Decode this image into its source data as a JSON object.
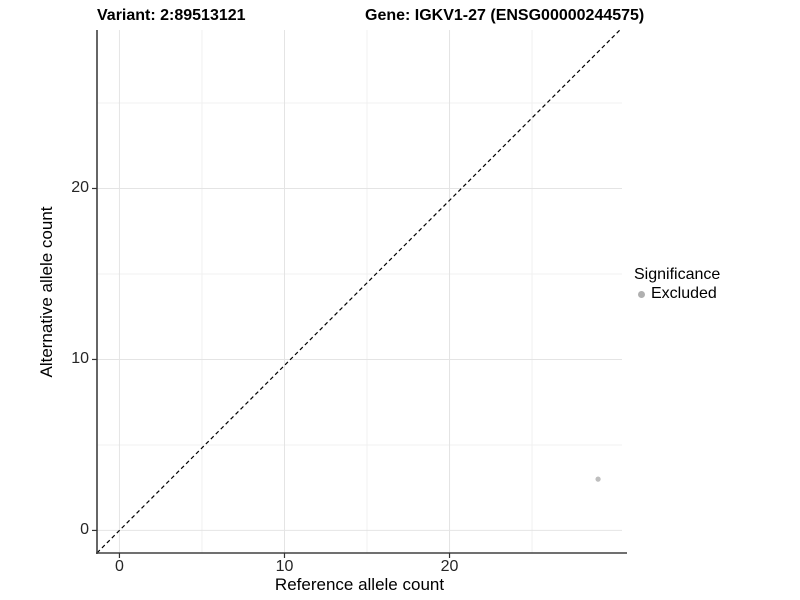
{
  "header": {
    "variant_title": "Variant: 2:89513121",
    "gene_title": "Gene: IGKV1-27 (ENSG00000244575)"
  },
  "chart_data": {
    "type": "scatter",
    "titles": [
      "Variant: 2:89513121",
      "Gene: IGKV1-27 (ENSG00000244575)"
    ],
    "xlabel": "Reference allele count",
    "ylabel": "Alternative allele count",
    "xlim": [
      -1.36,
      30.45
    ],
    "ylim": [
      -1.32,
      29.27
    ],
    "x_ticks": [
      0,
      10,
      20
    ],
    "x_tick_labels": [
      "0",
      "10",
      "20"
    ],
    "y_ticks": [
      0,
      10,
      20
    ],
    "y_tick_labels": [
      "0",
      "10",
      "20"
    ],
    "x_minor_ticks": [
      5,
      15,
      25
    ],
    "y_minor_ticks": [
      5,
      15,
      25
    ],
    "grid": true,
    "points": [
      {
        "x": 29,
        "y": 3,
        "series": "Excluded",
        "color": "#bebebe"
      }
    ],
    "abline": {
      "slope": 1,
      "intercept": 0,
      "style": "dashed",
      "color": "#000000"
    },
    "legend": {
      "title": "Significance",
      "position": "right",
      "items": [
        {
          "label": "Excluded",
          "color": "#b0b0b0"
        }
      ]
    },
    "colors": {
      "axis_line": "#404040",
      "tick_mark": "#333333",
      "grid_major": "#e4e4e4",
      "grid_minor": "#f0f0f0",
      "panel_background": "#ffffff"
    }
  }
}
